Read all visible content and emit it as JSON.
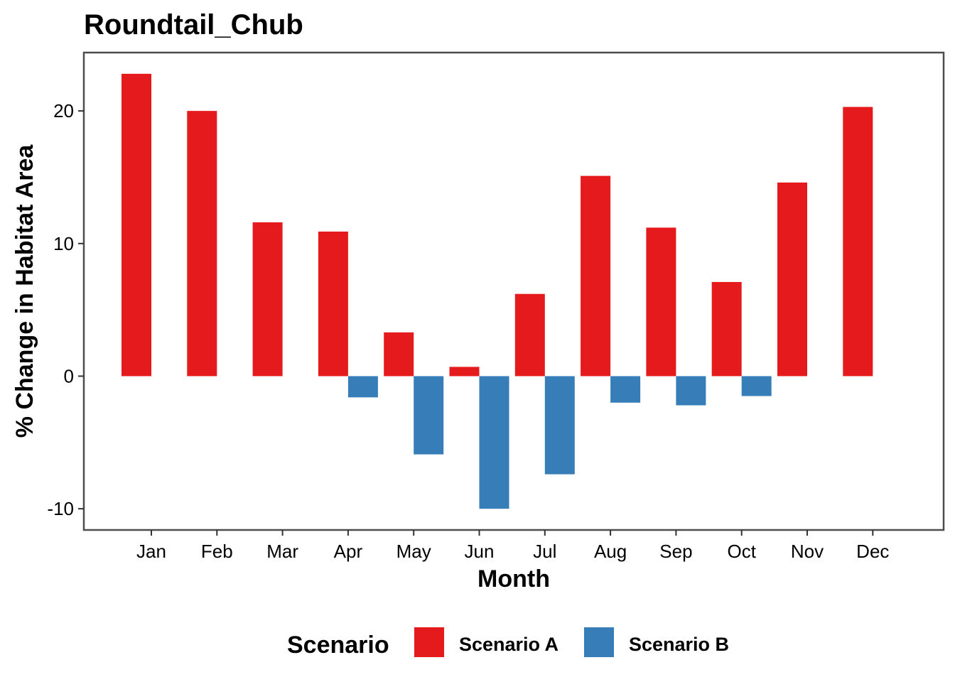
{
  "chart_data": {
    "type": "bar",
    "title": "Roundtail_Chub",
    "xlabel": "Month",
    "ylabel": "% Change in Habitat Area",
    "categories": [
      "Jan",
      "Feb",
      "Mar",
      "Apr",
      "May",
      "Jun",
      "Jul",
      "Aug",
      "Sep",
      "Oct",
      "Nov",
      "Dec"
    ],
    "series": [
      {
        "name": "Scenario A",
        "color": "#E41A1C",
        "values": [
          22.8,
          20.0,
          11.6,
          10.9,
          3.3,
          0.7,
          6.2,
          15.1,
          11.2,
          7.1,
          14.6,
          20.3
        ]
      },
      {
        "name": "Scenario B",
        "color": "#377EB8",
        "values": [
          null,
          null,
          null,
          -1.6,
          -5.9,
          -10.0,
          -7.4,
          -2.0,
          -2.2,
          -1.5,
          null,
          null
        ]
      }
    ],
    "ylim": [
      -11.6,
      24.4
    ],
    "yticks": [
      -10,
      0,
      10,
      20
    ],
    "grid": false,
    "legend": {
      "title": "Scenario",
      "position": "bottom"
    }
  }
}
